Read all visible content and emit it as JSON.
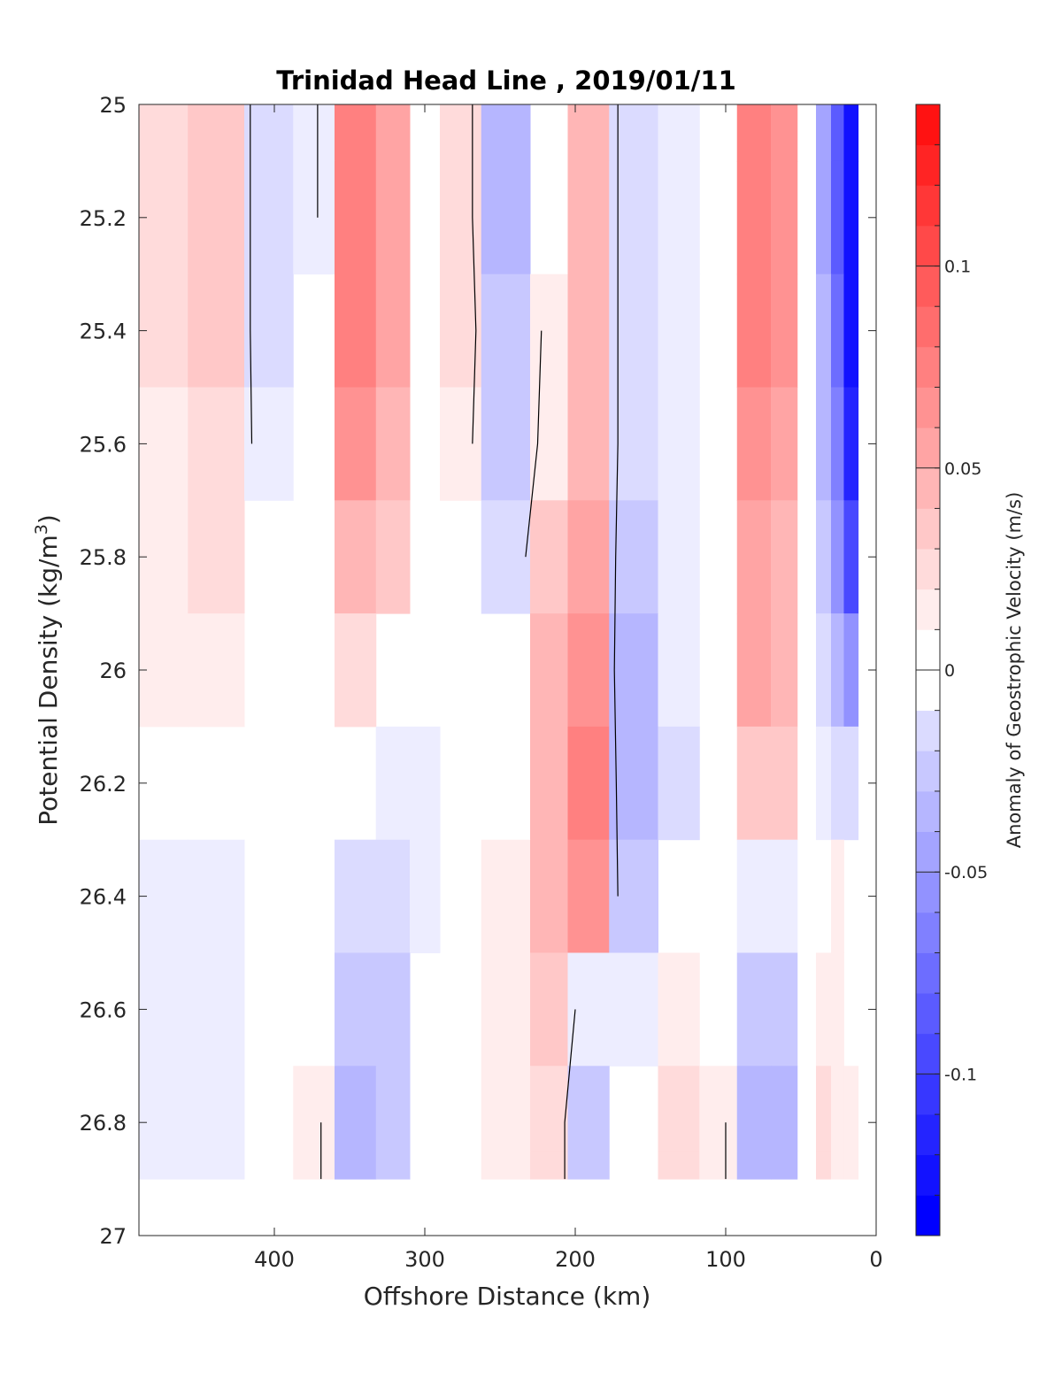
{
  "chart_data": {
    "type": "heatmap",
    "title": "Trinidad Head Line , 2019/01/11",
    "xlabel": "Offshore Distance (km)",
    "ylabel_main": "Potential Density (kg/m",
    "ylabel_sup": "3",
    "ylabel_close": ")",
    "xlim": [
      490,
      0
    ],
    "ylim": [
      25,
      27
    ],
    "x_reversed": true,
    "y_reversed": true,
    "xticks": [
      400,
      300,
      200,
      100,
      0
    ],
    "yticks": [
      25,
      25.2,
      25.4,
      25.6,
      25.8,
      26,
      26.2,
      26.4,
      26.6,
      26.8,
      27
    ],
    "ytick_labels": [
      "25",
      "25.2",
      "25.4",
      "25.6",
      "25.8",
      "26",
      "26.2",
      "26.4",
      "26.6",
      "26.8",
      "27"
    ],
    "colorbar": {
      "label": "Anomaly of Geostrophic Velocity (m/s)",
      "range": [
        -0.14,
        0.14
      ],
      "step": 0.01,
      "ticks": [
        0.1,
        0.05,
        0,
        -0.05,
        -0.1
      ],
      "tick_labels": [
        "0.1",
        "0.05",
        "0",
        "-0.05",
        "-0.1"
      ],
      "colormap": "blue-white-red",
      "neg_color": "#0000ff",
      "pos_color": "#ff0000"
    },
    "contour_levels": [
      0
    ],
    "contour_color": "#000000",
    "field": {
      "x": [
        475,
        440,
        400,
        375,
        345,
        320,
        300,
        280,
        245,
        215,
        195,
        160,
        130,
        105,
        80,
        60,
        45,
        35,
        25,
        18
      ],
      "sigma": [
        25.0,
        25.2,
        25.4,
        25.6,
        25.8,
        26.0,
        26.2,
        26.4,
        26.6,
        26.8,
        26.9
      ],
      "velocity": [
        [
          0.02,
          0.03,
          -0.02,
          -0.01,
          0.07,
          0.05,
          0.0,
          0.02,
          -0.04,
          0.0,
          0.04,
          -0.02,
          -0.01,
          0.0,
          0.07,
          0.06,
          0.0,
          -0.05,
          -0.09,
          -0.13
        ],
        [
          0.02,
          0.03,
          -0.02,
          -0.01,
          0.07,
          0.05,
          0.0,
          0.02,
          -0.04,
          0.0,
          0.04,
          -0.02,
          -0.01,
          0.0,
          0.07,
          0.06,
          0.0,
          -0.05,
          -0.09,
          -0.13
        ],
        [
          0.02,
          0.03,
          -0.02,
          0.0,
          0.07,
          0.05,
          0.0,
          0.02,
          -0.03,
          0.01,
          0.04,
          -0.02,
          -0.01,
          0.0,
          0.07,
          0.06,
          0.0,
          -0.04,
          -0.08,
          -0.13
        ],
        [
          0.015,
          0.025,
          -0.015,
          0.0,
          0.06,
          0.04,
          0.0,
          0.015,
          -0.03,
          0.015,
          0.04,
          -0.02,
          -0.01,
          0.0,
          0.06,
          0.05,
          0.0,
          -0.04,
          -0.07,
          -0.12
        ],
        [
          0.015,
          0.02,
          0.0,
          0.0,
          0.04,
          0.03,
          0.0,
          0.0,
          -0.02,
          0.03,
          0.05,
          -0.03,
          -0.01,
          0.0,
          0.05,
          0.04,
          0.0,
          -0.03,
          -0.06,
          -0.1
        ],
        [
          0.01,
          0.015,
          0.0,
          0.0,
          0.02,
          0.0,
          0.0,
          0.0,
          0.0,
          0.04,
          0.06,
          -0.04,
          -0.015,
          0.0,
          0.05,
          0.04,
          0.0,
          -0.02,
          -0.04,
          -0.06
        ],
        [
          0.0,
          0.0,
          0.0,
          0.0,
          0.0,
          -0.01,
          -0.01,
          0.0,
          0.0,
          0.04,
          0.07,
          -0.04,
          -0.02,
          0.0,
          0.03,
          0.03,
          0.0,
          -0.01,
          -0.02,
          -0.02
        ],
        [
          -0.01,
          -0.015,
          0.0,
          0.0,
          -0.02,
          -0.02,
          -0.01,
          0.0,
          0.01,
          0.04,
          0.06,
          -0.03,
          0.0,
          0.0,
          -0.01,
          -0.01,
          0.0,
          0.0,
          0.01,
          0.0
        ],
        [
          -0.01,
          -0.015,
          0.0,
          0.0,
          -0.03,
          -0.03,
          0.0,
          0.0,
          0.01,
          0.03,
          -0.01,
          -0.01,
          0.01,
          0.0,
          -0.03,
          -0.03,
          0.0,
          0.01,
          0.01,
          0.0
        ],
        [
          -0.01,
          -0.01,
          0.0,
          0.01,
          -0.04,
          -0.03,
          0.0,
          0.0,
          0.01,
          0.02,
          -0.03,
          0.0,
          0.02,
          0.01,
          -0.04,
          -0.04,
          0.0,
          0.02,
          0.015,
          0.01
        ],
        [
          -0.01,
          -0.01,
          0.0,
          0.01,
          -0.04,
          -0.03,
          0.0,
          0.0,
          0.01,
          0.02,
          -0.03,
          0.0,
          0.02,
          0.01,
          -0.04,
          -0.04,
          0.0,
          0.02,
          0.015,
          0.01
        ]
      ]
    }
  }
}
